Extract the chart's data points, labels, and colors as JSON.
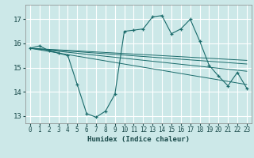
{
  "xlabel": "Humidex (Indice chaleur)",
  "ylabel": "",
  "bg_color": "#cce8e8",
  "grid_color": "#ffffff",
  "line_color": "#1a6b6b",
  "xlim": [
    -0.5,
    23.5
  ],
  "ylim": [
    12.7,
    17.6
  ],
  "yticks": [
    13,
    14,
    15,
    16,
    17
  ],
  "xticks": [
    0,
    1,
    2,
    3,
    4,
    5,
    6,
    7,
    8,
    9,
    10,
    11,
    12,
    13,
    14,
    15,
    16,
    17,
    18,
    19,
    20,
    21,
    22,
    23
  ],
  "series1_x": [
    0,
    1,
    2,
    3,
    4,
    5,
    6,
    7,
    8,
    9,
    10,
    11,
    12,
    13,
    14,
    15,
    16,
    17,
    18,
    19,
    20,
    21,
    22,
    23
  ],
  "series1_y": [
    15.8,
    15.9,
    15.7,
    15.6,
    15.5,
    14.3,
    13.1,
    12.95,
    13.2,
    13.9,
    16.5,
    16.55,
    16.6,
    17.1,
    17.15,
    16.4,
    16.6,
    17.0,
    16.1,
    15.1,
    14.65,
    14.25,
    14.8,
    14.15
  ],
  "series2_x": [
    0,
    23
  ],
  "series2_y": [
    15.8,
    15.15
  ],
  "series3_x": [
    0,
    23
  ],
  "series3_y": [
    15.8,
    15.3
  ],
  "series4_x": [
    0,
    23
  ],
  "series4_y": [
    15.8,
    14.85
  ],
  "series5_x": [
    0,
    23
  ],
  "series5_y": [
    15.8,
    14.3
  ]
}
